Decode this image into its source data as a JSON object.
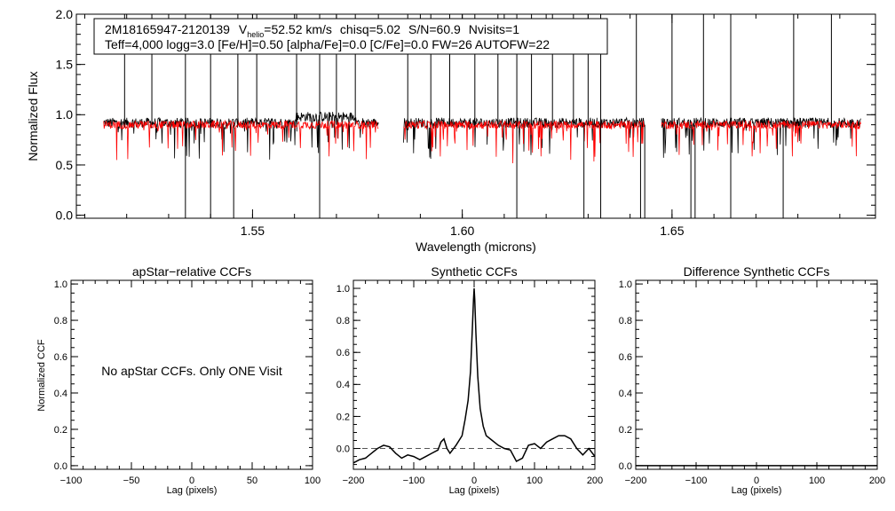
{
  "chart_data": [
    {
      "type": "line",
      "panel": "spectrum",
      "title": "",
      "annotation": {
        "star_id": "2M18165947-2120139",
        "v_symbol": "V",
        "v_subscript": "helio",
        "v_value": "=52.52 km/s",
        "chisq": "chisq=5.02",
        "sn": "S/N=60.9",
        "nvisits": "Nvisits=1",
        "params": "Teff=4,000 logg=3.0 [Fe/H]=0.50 [alpha/Fe]=0.0 [C/Fe]=0.0 FW=26 AUTOFW=22"
      },
      "xlabel": "Wavelength (microns)",
      "ylabel": "Normalized Flux",
      "xlim": [
        1.508,
        1.6985
      ],
      "ylim": [
        -0.03,
        2.0
      ],
      "x_ticks": [
        {
          "v": 1.55,
          "label": "1.55"
        },
        {
          "v": 1.6,
          "label": "1.60"
        },
        {
          "v": 1.65,
          "label": "1.65"
        }
      ],
      "y_ticks": [
        {
          "v": 0.0,
          "label": "0.0"
        },
        {
          "v": 0.5,
          "label": "0.5"
        },
        {
          "v": 1.0,
          "label": "1.0"
        },
        {
          "v": 1.5,
          "label": "1.5"
        },
        {
          "v": 2.0,
          "label": "2.0"
        }
      ],
      "chips": [
        [
          1.5145,
          1.58
        ],
        [
          1.586,
          1.6435
        ],
        [
          1.6475,
          1.695
        ]
      ],
      "series": [
        {
          "name": "observed",
          "color": "#000000",
          "mean": 0.92,
          "noise": 0.05
        },
        {
          "name": "model",
          "color": "#ff0000",
          "mean": 0.9,
          "noise": 0.04
        }
      ],
      "spikes_up": [
        1.5195,
        1.526,
        1.534,
        1.54,
        1.5465,
        1.551,
        1.5605,
        1.566,
        1.57,
        1.5745,
        1.587,
        1.5925,
        1.597,
        1.603,
        1.6085,
        1.613,
        1.6165,
        1.6215,
        1.6265,
        1.63,
        1.633,
        1.6415,
        1.65,
        1.6575,
        1.664,
        1.679,
        1.688
      ],
      "spikes_down": [
        1.534,
        1.54,
        1.5455,
        1.566,
        1.613,
        1.629,
        1.633,
        1.6425,
        1.6435,
        1.6545,
        1.6555,
        1.664,
        1.6765
      ]
    },
    {
      "type": "line",
      "panel": "apstar",
      "title": "apStar−relative CCFs",
      "xlabel": "Lag (pixels)",
      "ylabel": "Normalized CCF",
      "xlim": [
        -100,
        100
      ],
      "ylim": [
        -0.02,
        1.02
      ],
      "x_ticks": [
        {
          "v": -100,
          "label": "−100"
        },
        {
          "v": -50,
          "label": "−50"
        },
        {
          "v": 0,
          "label": "0"
        },
        {
          "v": 50,
          "label": "50"
        },
        {
          "v": 100,
          "label": "100"
        }
      ],
      "y_ticks": [
        {
          "v": 0.0,
          "label": "0.0"
        },
        {
          "v": 0.2,
          "label": "0.2"
        },
        {
          "v": 0.4,
          "label": "0.4"
        },
        {
          "v": 0.6,
          "label": "0.6"
        },
        {
          "v": 0.8,
          "label": "0.8"
        },
        {
          "v": 1.0,
          "label": "1.0"
        }
      ],
      "message": "No apStar CCFs.  Only ONE Visit",
      "series": []
    },
    {
      "type": "line",
      "panel": "synthetic",
      "title": "Synthetic CCFs",
      "xlabel": "Lag (pixels)",
      "ylabel": "",
      "xlim": [
        -200,
        200
      ],
      "ylim": [
        -0.13,
        1.05
      ],
      "x_ticks": [
        {
          "v": -200,
          "label": "−200"
        },
        {
          "v": -100,
          "label": "−100"
        },
        {
          "v": 0,
          "label": "0"
        },
        {
          "v": 100,
          "label": "100"
        },
        {
          "v": 200,
          "label": "200"
        }
      ],
      "y_ticks": [
        {
          "v": 0.0,
          "label": "0.0"
        },
        {
          "v": 0.2,
          "label": "0.2"
        },
        {
          "v": 0.4,
          "label": "0.4"
        },
        {
          "v": 0.6,
          "label": "0.6"
        },
        {
          "v": 0.8,
          "label": "0.8"
        },
        {
          "v": 1.0,
          "label": "1.0"
        }
      ],
      "zero_line": 0.0,
      "series": [
        {
          "name": "ccf",
          "color": "#000000",
          "x": [
            -200,
            -190,
            -180,
            -170,
            -160,
            -150,
            -140,
            -130,
            -120,
            -110,
            -100,
            -90,
            -80,
            -70,
            -60,
            -55,
            -50,
            -45,
            -40,
            -30,
            -20,
            -15,
            -10,
            -6,
            -3,
            -1,
            0,
            1,
            3,
            6,
            10,
            15,
            20,
            30,
            40,
            50,
            60,
            70,
            80,
            90,
            100,
            110,
            120,
            130,
            140,
            150,
            160,
            170,
            180,
            190,
            200
          ],
          "y": [
            -0.09,
            -0.07,
            -0.06,
            -0.03,
            0.0,
            0.02,
            0.01,
            -0.03,
            -0.06,
            -0.04,
            -0.05,
            -0.07,
            -0.05,
            -0.03,
            -0.01,
            0.04,
            0.06,
            0.0,
            -0.03,
            0.02,
            0.08,
            0.18,
            0.3,
            0.48,
            0.75,
            0.93,
            1.0,
            0.93,
            0.72,
            0.45,
            0.25,
            0.14,
            0.08,
            0.05,
            0.02,
            0.0,
            -0.01,
            -0.08,
            -0.06,
            0.02,
            0.03,
            0.0,
            0.04,
            0.06,
            0.08,
            0.08,
            0.06,
            0.0,
            -0.04,
            0.0,
            -0.05
          ]
        }
      ]
    },
    {
      "type": "line",
      "panel": "difference",
      "title": "Difference Synthetic CCFs",
      "xlabel": "Lag (pixels)",
      "ylabel": "",
      "xlim": [
        -200,
        200
      ],
      "ylim": [
        -0.02,
        1.02
      ],
      "x_ticks": [
        {
          "v": -200,
          "label": "−200"
        },
        {
          "v": -100,
          "label": "−100"
        },
        {
          "v": 0,
          "label": "0"
        },
        {
          "v": 100,
          "label": "100"
        },
        {
          "v": 200,
          "label": "200"
        }
      ],
      "y_ticks": [
        {
          "v": 0.0,
          "label": "0.0"
        },
        {
          "v": 0.2,
          "label": "0.2"
        },
        {
          "v": 0.4,
          "label": "0.4"
        },
        {
          "v": 0.6,
          "label": "0.6"
        },
        {
          "v": 0.8,
          "label": "0.8"
        },
        {
          "v": 1.0,
          "label": "1.0"
        }
      ],
      "series": [
        {
          "name": "difference",
          "color": "#000000",
          "x": [
            -200,
            200
          ],
          "y": [
            0.0,
            0.0
          ]
        }
      ]
    }
  ]
}
